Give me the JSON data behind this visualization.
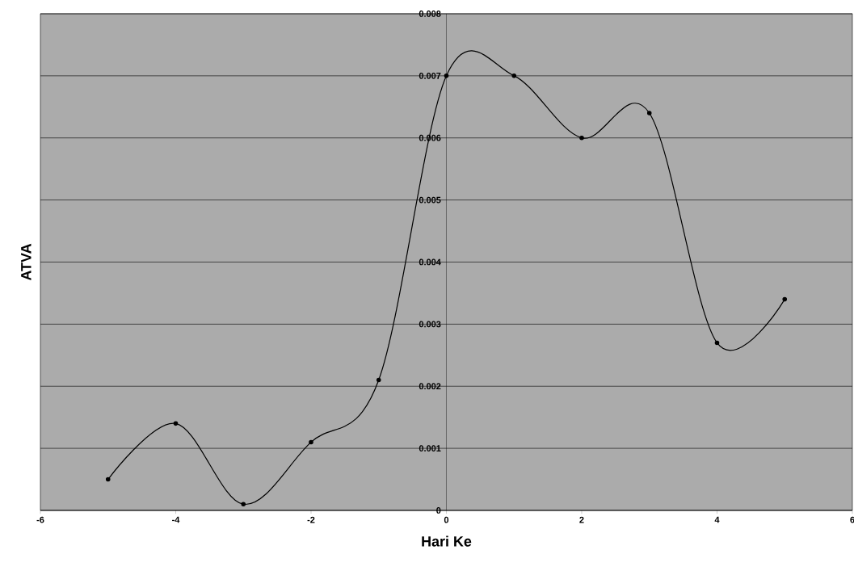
{
  "chart_data": {
    "type": "line",
    "xlabel": "Hari Ke",
    "ylabel": "ATVA",
    "x": [
      -5,
      -4,
      -3,
      -2,
      -1,
      0,
      1,
      2,
      3,
      4,
      5
    ],
    "series": [
      {
        "color": "#000000",
        "values": [
          0.0005,
          0.0014,
          0.0001,
          0.0011,
          0.0021,
          0.007,
          0.007,
          0.006,
          0.0064,
          0.0027,
          0.0034
        ]
      }
    ],
    "xlim": [
      -6,
      6
    ],
    "xticks": [
      -6,
      -4,
      -2,
      0,
      2,
      4,
      6
    ],
    "ylim": [
      0,
      0.008
    ],
    "yticks": [
      0,
      0.001,
      0.002,
      0.003,
      0.004,
      0.005,
      0.006,
      0.007,
      0.008
    ],
    "grid": "y",
    "marker": "circle",
    "line_style": "solid"
  }
}
